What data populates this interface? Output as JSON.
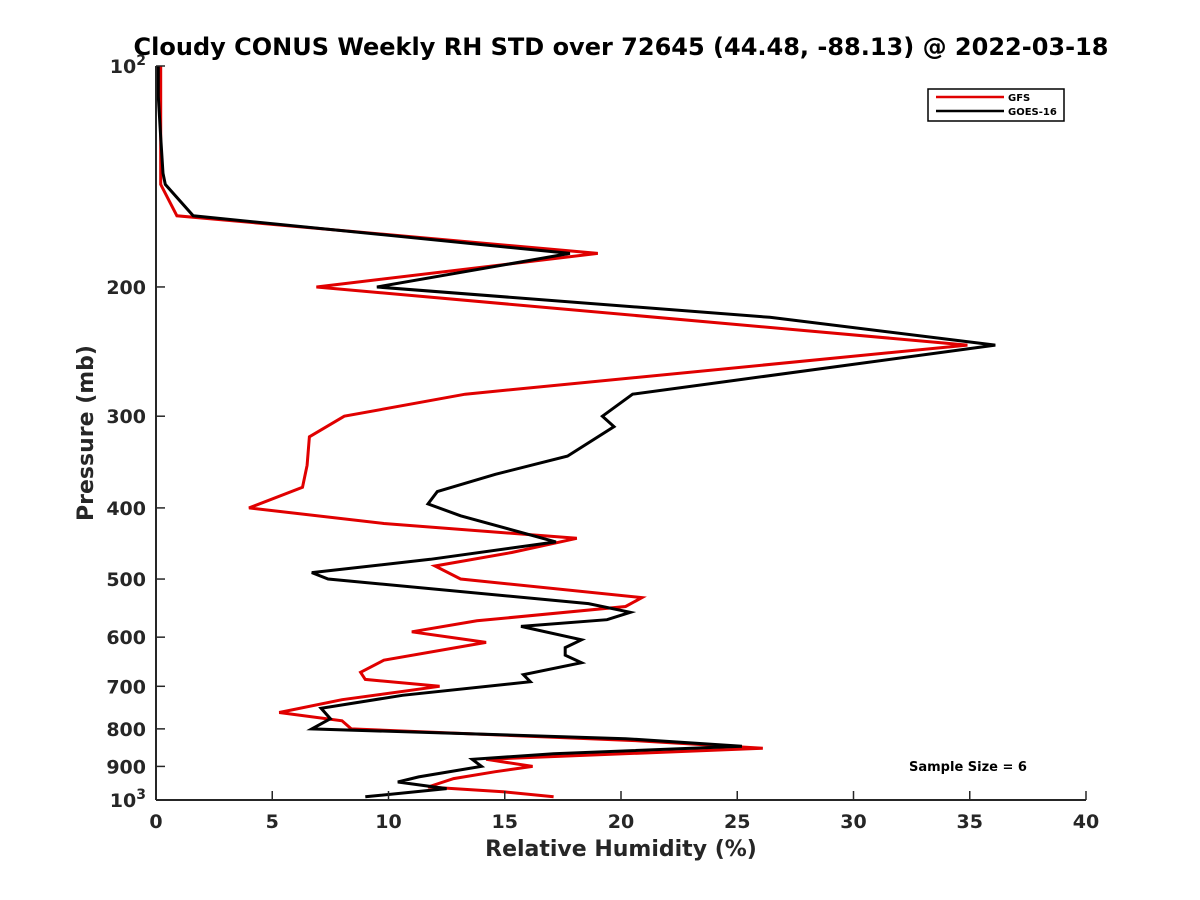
{
  "chart_data": {
    "type": "line",
    "title": "Cloudy CONUS Weekly RH STD over 72645 (44.48, -88.13) @ 2022-03-18",
    "xlabel": "Relative Humidity (%)",
    "ylabel": "Pressure (mb)",
    "xlim": [
      0,
      40
    ],
    "ylim": [
      100,
      1000
    ],
    "y_scale": "log",
    "y_reversed": true,
    "x_ticks": [
      "0",
      "5",
      "10",
      "15",
      "20",
      "25",
      "30",
      "35",
      "40"
    ],
    "y_ticks": [
      {
        "value": 100,
        "base": "10",
        "exp": "2"
      },
      {
        "value": 200,
        "label": "200"
      },
      {
        "value": 300,
        "label": "300"
      },
      {
        "value": 400,
        "label": "400"
      },
      {
        "value": 500,
        "label": "500"
      },
      {
        "value": 600,
        "label": "600"
      },
      {
        "value": 700,
        "label": "700"
      },
      {
        "value": 800,
        "label": "800"
      },
      {
        "value": 900,
        "label": "900"
      },
      {
        "value": 1000,
        "base": "10",
        "exp": "3"
      }
    ],
    "legend_position": "top-right",
    "grid": false,
    "annotation": "Sample Size = 6",
    "series": [
      {
        "name": "GFS",
        "color": "#e00000",
        "points": [
          [
            0.2,
            100
          ],
          [
            0.2,
            115
          ],
          [
            0.2,
            130
          ],
          [
            0.2,
            145
          ],
          [
            0.9,
            160
          ],
          [
            19.0,
            180
          ],
          [
            6.9,
            200
          ],
          [
            34.9,
            240
          ],
          [
            13.3,
            280
          ],
          [
            8.1,
            300
          ],
          [
            6.6,
            320
          ],
          [
            6.5,
            350
          ],
          [
            6.3,
            375
          ],
          [
            4.0,
            400
          ],
          [
            9.8,
            420
          ],
          [
            18.1,
            440
          ],
          [
            15.3,
            460
          ],
          [
            12.0,
            480
          ],
          [
            13.1,
            500
          ],
          [
            20.9,
            530
          ],
          [
            20.2,
            545
          ],
          [
            13.8,
            570
          ],
          [
            11.0,
            590
          ],
          [
            14.2,
            610
          ],
          [
            9.8,
            645
          ],
          [
            8.8,
            670
          ],
          [
            9.0,
            685
          ],
          [
            12.2,
            700
          ],
          [
            8.0,
            730
          ],
          [
            5.3,
            760
          ],
          [
            8.0,
            780
          ],
          [
            8.4,
            800
          ],
          [
            20.6,
            830
          ],
          [
            26.1,
            850
          ],
          [
            14.2,
            880
          ],
          [
            16.2,
            900
          ],
          [
            14.6,
            915
          ],
          [
            12.8,
            935
          ],
          [
            11.7,
            960
          ],
          [
            15.0,
            975
          ],
          [
            17.1,
            990
          ]
        ]
      },
      {
        "name": "GOES-16",
        "color": "#000000",
        "points": [
          [
            0.1,
            100
          ],
          [
            0.1,
            110
          ],
          [
            0.2,
            125
          ],
          [
            0.3,
            140
          ],
          [
            0.4,
            145
          ],
          [
            1.6,
            160
          ],
          [
            17.8,
            180
          ],
          [
            9.5,
            200
          ],
          [
            26.4,
            220
          ],
          [
            36.1,
            240
          ],
          [
            20.5,
            280
          ],
          [
            19.2,
            300
          ],
          [
            19.7,
            310
          ],
          [
            17.7,
            340
          ],
          [
            14.6,
            360
          ],
          [
            12.1,
            380
          ],
          [
            11.7,
            395
          ],
          [
            13.1,
            410
          ],
          [
            17.2,
            445
          ],
          [
            11.8,
            470
          ],
          [
            6.7,
            490
          ],
          [
            7.4,
            500
          ],
          [
            18.6,
            540
          ],
          [
            20.4,
            555
          ],
          [
            19.4,
            568
          ],
          [
            15.7,
            580
          ],
          [
            18.3,
            605
          ],
          [
            17.6,
            620
          ],
          [
            17.6,
            635
          ],
          [
            18.3,
            650
          ],
          [
            15.8,
            675
          ],
          [
            16.1,
            690
          ],
          [
            10.6,
            720
          ],
          [
            7.1,
            750
          ],
          [
            7.5,
            775
          ],
          [
            6.7,
            800
          ],
          [
            20.2,
            825
          ],
          [
            25.2,
            845
          ],
          [
            17.1,
            865
          ],
          [
            13.6,
            880
          ],
          [
            14.0,
            900
          ],
          [
            11.3,
            930
          ],
          [
            10.4,
            945
          ],
          [
            12.5,
            965
          ],
          [
            9.0,
            990
          ]
        ]
      }
    ]
  }
}
